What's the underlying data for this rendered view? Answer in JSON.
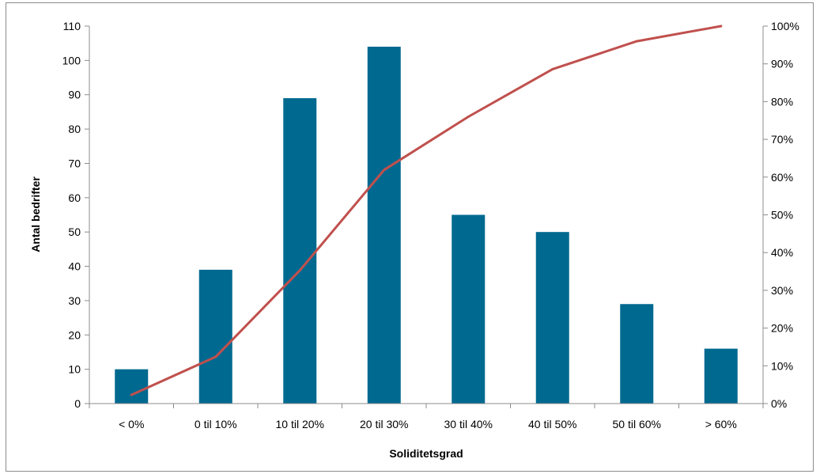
{
  "chart_data": {
    "type": "bar",
    "categories": [
      "< 0%",
      "0 til 10%",
      "10 til 20%",
      "20 til 30%",
      "30 til 40%",
      "40 til 50%",
      "50 til 60%",
      "> 60%"
    ],
    "series": [
      {
        "type": "bar",
        "values": [
          10,
          39,
          89,
          104,
          55,
          50,
          29,
          16
        ],
        "axis": "left",
        "color": "#006990"
      },
      {
        "type": "line",
        "values": [
          2.3,
          12.4,
          35.3,
          61.9,
          76.0,
          88.6,
          96.0,
          100.0
        ],
        "axis": "right",
        "color": "#c0504d"
      }
    ],
    "xlabel": "Soliditetsgrad",
    "ylabel": "Antal bedrifter",
    "ylim": [
      0,
      110
    ],
    "y_ticks": [
      0,
      10,
      20,
      30,
      40,
      50,
      60,
      70,
      80,
      90,
      100,
      110
    ],
    "y2lim": [
      0,
      100
    ],
    "y2_ticks": [
      0,
      10,
      20,
      30,
      40,
      50,
      60,
      70,
      80,
      90,
      100
    ],
    "y2_tick_suffix": "%",
    "grid": false
  }
}
